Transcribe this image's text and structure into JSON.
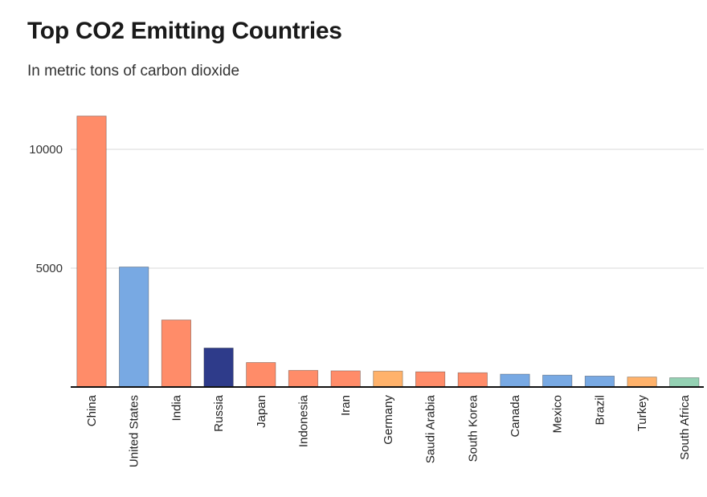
{
  "chart_data": {
    "type": "bar",
    "title": "Top CO2 Emitting Countries",
    "subtitle": "In metric tons of carbon dioxide",
    "categories": [
      "China",
      "United States",
      "India",
      "Russia",
      "Japan",
      "Indonesia",
      "Iran",
      "Germany",
      "Saudi Arabia",
      "South Korea",
      "Canada",
      "Mexico",
      "Brazil",
      "Turkey",
      "South Africa"
    ],
    "values": [
      11400,
      5050,
      2820,
      1640,
      1030,
      700,
      680,
      670,
      640,
      600,
      540,
      500,
      460,
      420,
      390
    ],
    "colors": [
      "#ff8c69",
      "#78a9e3",
      "#ff8c69",
      "#2e3b8a",
      "#ff8c69",
      "#ff8c69",
      "#ff8c69",
      "#ffb26b",
      "#ff8c69",
      "#ff8c69",
      "#78a9e3",
      "#78a9e3",
      "#78a9e3",
      "#ffb26b",
      "#94d1b3"
    ],
    "yticks": [
      5000,
      10000
    ],
    "ylim": [
      0,
      12000
    ],
    "xlabel": "",
    "ylabel": "",
    "grid": true,
    "legend": "none"
  }
}
